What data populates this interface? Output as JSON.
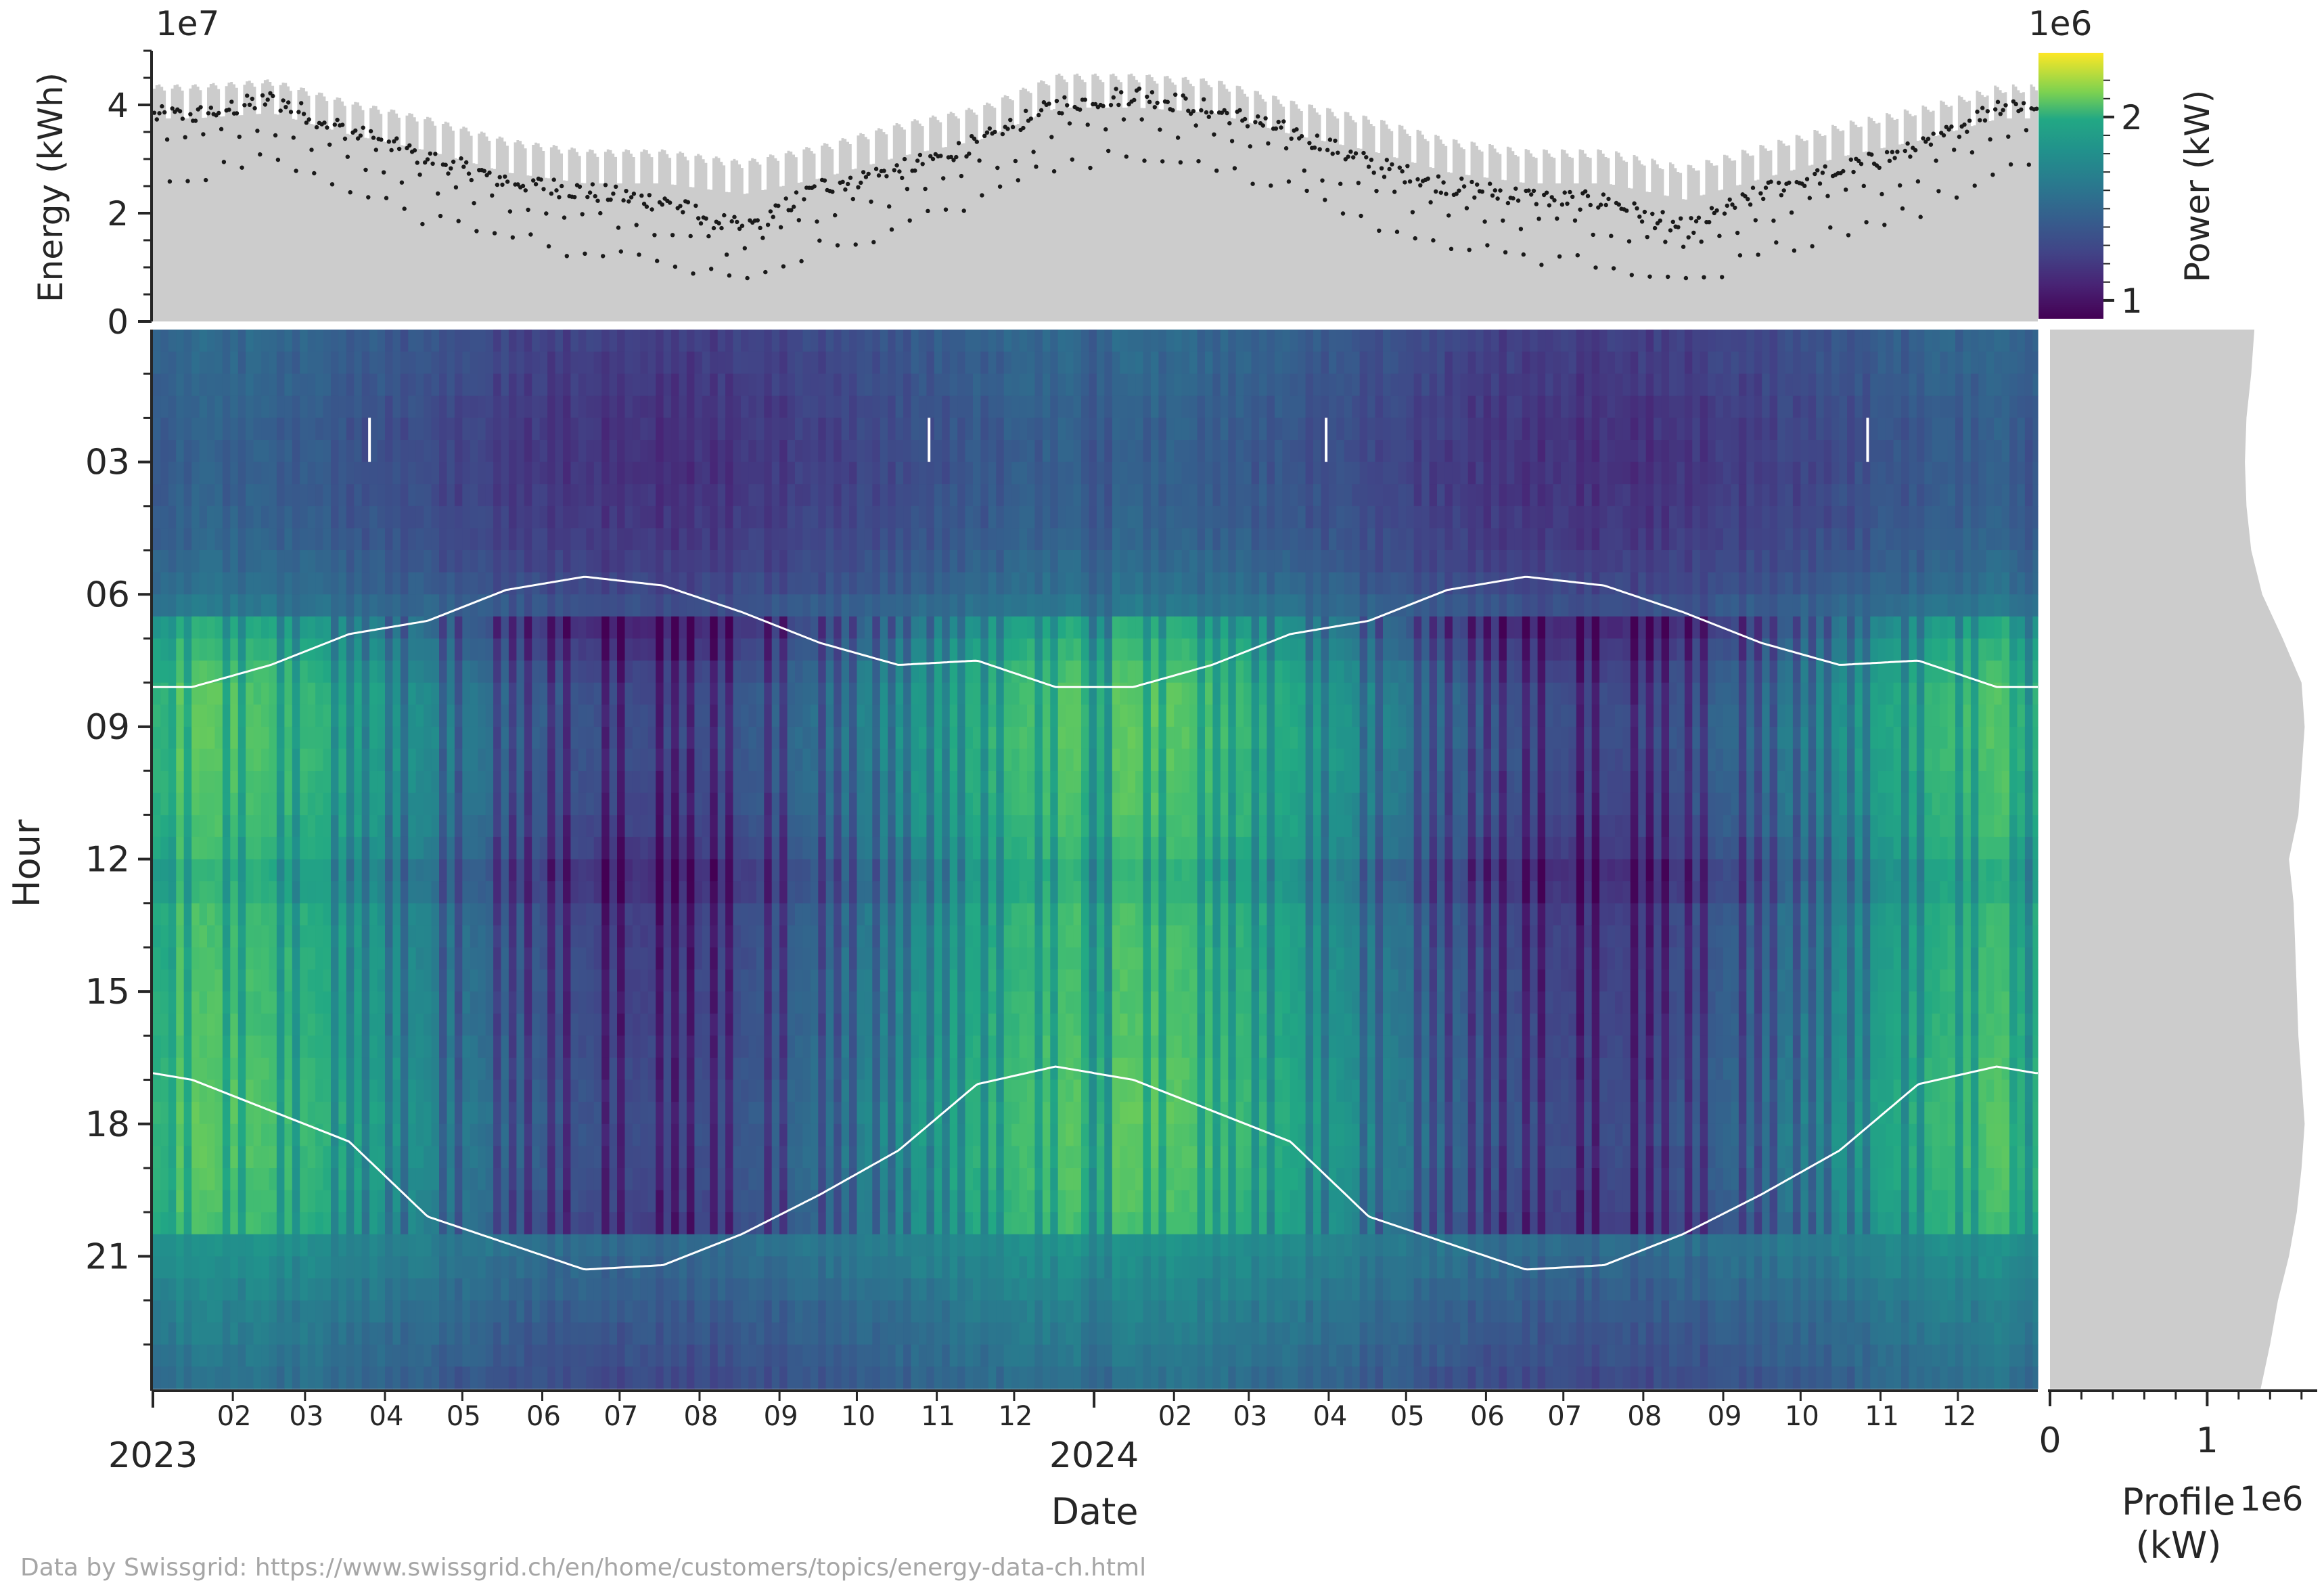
{
  "chart_data": [
    {
      "name": "daily-energy",
      "type": "area",
      "ylabel": "Energy (kWh)",
      "offset_text": "1e7",
      "ylim": [
        0,
        5
      ],
      "yticks": [
        0,
        2,
        4
      ],
      "series": [
        {
          "kind": "gray-area-daily-total",
          "x_range": [
            "2023-01-01",
            "2024-12-31"
          ],
          "monthly_level": [
            4.3,
            4.4,
            4.0,
            3.7,
            3.3,
            3.1,
            3.1,
            2.9,
            3.2,
            3.6,
            3.9,
            4.5,
            4.5,
            4.4,
            4.0,
            3.7,
            3.3,
            3.1,
            3.1,
            2.8,
            3.2,
            3.6,
            3.9,
            4.3
          ]
        },
        {
          "kind": "black-dots-daily-points",
          "monthly_level": [
            3.8,
            4.1,
            3.5,
            3.0,
            2.6,
            2.4,
            2.2,
            1.7,
            2.5,
            2.8,
            3.3,
            4.0,
            4.2,
            3.9,
            3.5,
            2.9,
            2.5,
            2.3,
            2.2,
            1.7,
            2.4,
            2.8,
            3.2,
            4.0
          ]
        }
      ]
    },
    {
      "name": "hourly-power-heatmap",
      "type": "heatmap",
      "xlabel": "Date",
      "ylabel": "Hour",
      "x_range": [
        "2023-01-01",
        "2024-12-31"
      ],
      "x_year_labels": [
        "2023",
        "2024"
      ],
      "x_month_labels": [
        "02",
        "03",
        "04",
        "05",
        "06",
        "07",
        "08",
        "09",
        "10",
        "11",
        "12"
      ],
      "y_range": [
        0,
        24
      ],
      "y_tick_labels": [
        "03",
        "06",
        "09",
        "12",
        "15",
        "18",
        "21"
      ],
      "colormap": "viridis",
      "colorbar": {
        "label": "Power (kW)",
        "offset_text": "1e6",
        "range": [
          0.9,
          2.35
        ],
        "tick_labels": [
          "1",
          "2"
        ]
      },
      "sunrise_local_hour_by_month": [
        8.1,
        7.6,
        6.9,
        6.6,
        5.9,
        5.6,
        5.8,
        6.4,
        7.1,
        7.6,
        7.5,
        8.1
      ],
      "sunset_local_hour_by_month": [
        17.0,
        17.7,
        18.4,
        20.1,
        20.7,
        21.3,
        21.2,
        20.5,
        19.6,
        18.6,
        17.1,
        16.7
      ],
      "dst_change_dates": [
        "2023-03-26",
        "2023-10-29",
        "2024-03-31",
        "2024-10-27"
      ],
      "value_summary": {
        "night_min_kw": 0.95,
        "day_winter_max_kw": 2.3,
        "day_summer_typical_kw": 1.5
      }
    },
    {
      "name": "average-daily-profile",
      "type": "area",
      "xlabel": "Profile\n(kW)",
      "offset_text": "1e6",
      "xlim": [
        0,
        1.7
      ],
      "xtick_labels": [
        "0",
        "1"
      ],
      "hours": [
        0,
        1,
        2,
        3,
        4,
        5,
        6,
        7,
        8,
        9,
        10,
        11,
        12,
        13,
        14,
        15,
        16,
        17,
        18,
        19,
        20,
        21,
        22,
        23,
        24
      ],
      "values_mw": [
        1.3,
        1.28,
        1.25,
        1.24,
        1.25,
        1.28,
        1.35,
        1.48,
        1.6,
        1.62,
        1.6,
        1.58,
        1.52,
        1.55,
        1.56,
        1.57,
        1.58,
        1.6,
        1.62,
        1.6,
        1.57,
        1.52,
        1.45,
        1.4,
        1.34
      ]
    }
  ],
  "footer": {
    "credit": "Data by Swissgrid: https://www.swissgrid.ch/en/home/customers/topics/energy-data-ch.html"
  }
}
